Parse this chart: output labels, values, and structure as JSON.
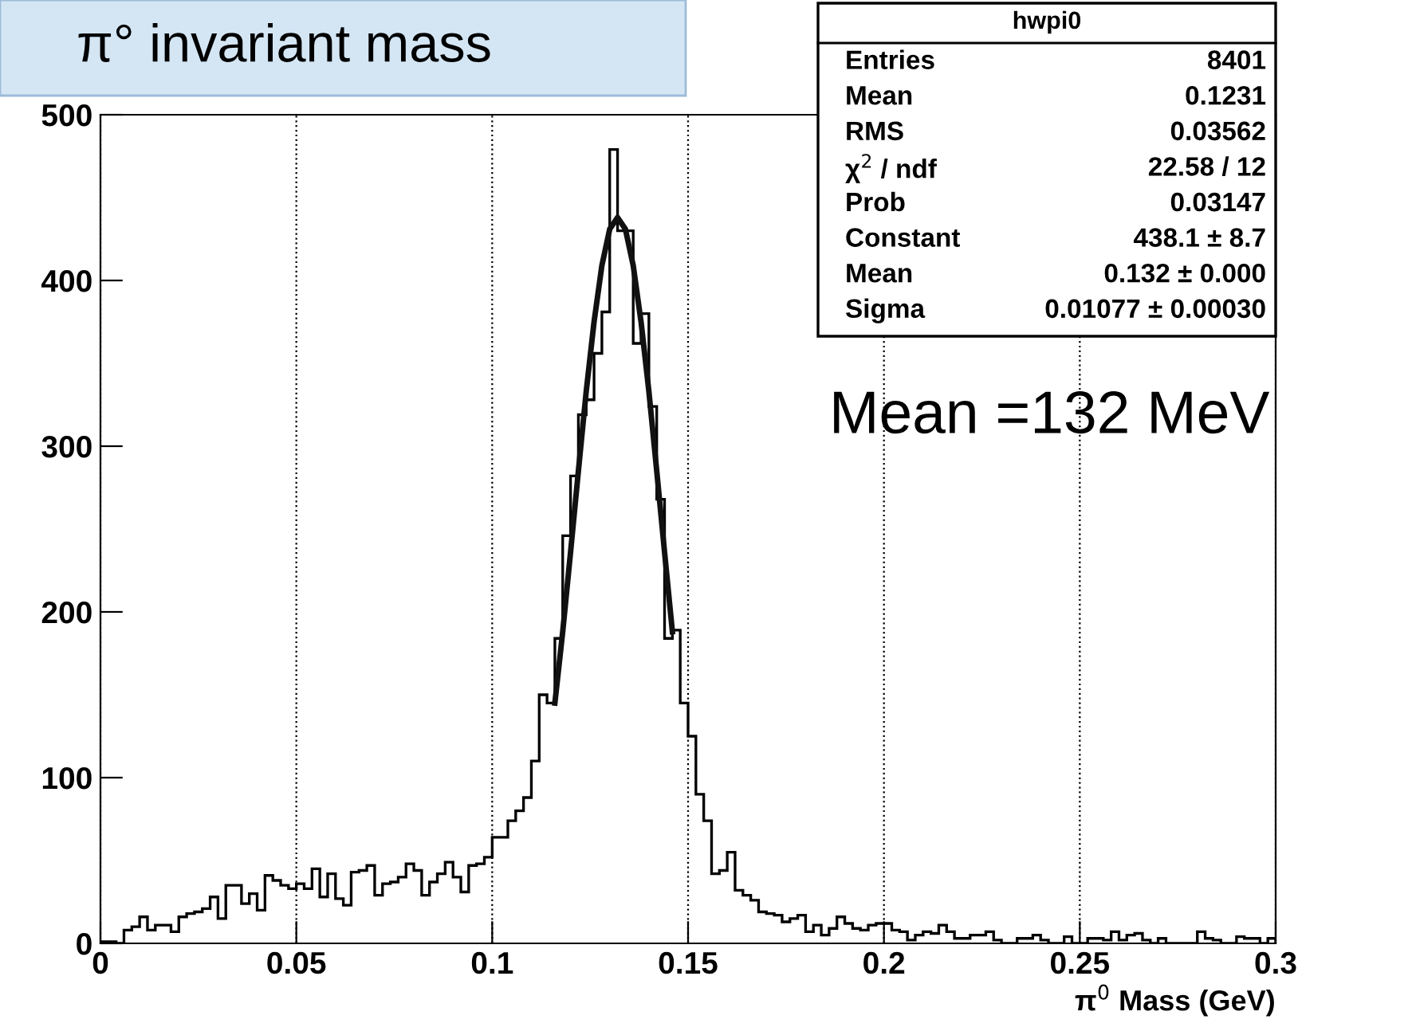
{
  "chart_data": {
    "type": "histogram",
    "title": "π° invariant mass",
    "xlabel": "π$^{0}$ Mass (GeV)",
    "xlim": [
      0,
      0.3
    ],
    "xticks": [
      0,
      0.05,
      0.1,
      0.15,
      0.2,
      0.25,
      0.3
    ],
    "ylim": [
      0,
      500
    ],
    "yticks": [
      0,
      100,
      200,
      300,
      400,
      500
    ],
    "grid": "x",
    "color": "#000000",
    "bins": [
      0,
      0.002,
      0.004,
      0.006,
      0.008,
      0.01,
      0.012,
      0.014,
      0.016,
      0.018,
      0.02,
      0.022,
      0.024,
      0.026,
      0.028,
      0.03,
      0.032,
      0.034,
      0.036,
      0.038,
      0.04,
      0.042,
      0.044,
      0.046,
      0.048,
      0.05,
      0.052,
      0.054,
      0.056,
      0.058,
      0.06,
      0.062,
      0.064,
      0.066,
      0.068,
      0.07,
      0.072,
      0.074,
      0.076,
      0.078,
      0.08,
      0.082,
      0.084,
      0.086,
      0.088,
      0.09,
      0.092,
      0.094,
      0.096,
      0.098,
      0.1,
      0.102,
      0.104,
      0.106,
      0.108,
      0.11,
      0.112,
      0.114,
      0.116,
      0.118,
      0.12,
      0.122,
      0.124,
      0.126,
      0.128,
      0.13,
      0.132,
      0.134,
      0.136,
      0.138,
      0.14,
      0.142,
      0.144,
      0.146,
      0.148,
      0.15,
      0.152,
      0.154,
      0.156,
      0.158,
      0.16,
      0.162,
      0.164,
      0.166,
      0.168,
      0.17,
      0.172,
      0.174,
      0.176,
      0.178,
      0.18,
      0.182,
      0.184,
      0.186,
      0.188,
      0.19,
      0.192,
      0.194,
      0.196,
      0.198,
      0.2,
      0.202,
      0.204,
      0.206,
      0.208,
      0.21,
      0.212,
      0.214,
      0.216,
      0.218,
      0.22,
      0.222,
      0.224,
      0.226,
      0.228,
      0.23,
      0.232,
      0.234,
      0.236,
      0.238,
      0.24,
      0.242,
      0.244,
      0.246,
      0.248,
      0.25,
      0.252,
      0.254,
      0.256,
      0.258,
      0.26,
      0.262,
      0.264,
      0.266,
      0.268,
      0.27,
      0.272,
      0.274,
      0.276,
      0.278,
      0.28,
      0.282,
      0.284,
      0.286,
      0.288,
      0.29,
      0.292,
      0.294,
      0.296,
      0.298,
      0.3
    ],
    "values": [
      1,
      1,
      0,
      8,
      10,
      16,
      8,
      11,
      11,
      7,
      16,
      18,
      19,
      21,
      28,
      15,
      35,
      35,
      24,
      30,
      20,
      41,
      38,
      35,
      33,
      36,
      33,
      45,
      28,
      42,
      27,
      23,
      43,
      44,
      47,
      29,
      36,
      37,
      40,
      48,
      44,
      29,
      37,
      42,
      49,
      40,
      31,
      47,
      48,
      52,
      64,
      64,
      74,
      80,
      88,
      110,
      150,
      145,
      184,
      246,
      282,
      319,
      328,
      356,
      381,
      479,
      430,
      430,
      362,
      380,
      324,
      268,
      184,
      189,
      145,
      125,
      90,
      74,
      42,
      44,
      55,
      32,
      29,
      26,
      19,
      18,
      17,
      13,
      15,
      17,
      7,
      11,
      5,
      9,
      16,
      12,
      9,
      8,
      11,
      12,
      12,
      8,
      7,
      2,
      5,
      7,
      6,
      11,
      7,
      3,
      3,
      5,
      5,
      7,
      2,
      0,
      0,
      3,
      3,
      5,
      2,
      0,
      0,
      4,
      0,
      0,
      3,
      3,
      2,
      7,
      2,
      5,
      6,
      2,
      0,
      3,
      0,
      0,
      0,
      0,
      7,
      3,
      2,
      0,
      0,
      4,
      3,
      3,
      0,
      3
    ],
    "series": [
      {
        "type": "line",
        "color": "#111111",
        "x": [
          0.116,
          0.118,
          0.12,
          0.122,
          0.124,
          0.126,
          0.128,
          0.13,
          0.132,
          0.134,
          0.136,
          0.138,
          0.14,
          0.142,
          0.144,
          0.146
        ],
        "values": [
          145,
          188,
          236,
          285,
          333,
          375,
          409,
          431,
          438,
          431,
          409,
          375,
          333,
          285,
          236,
          188
        ]
      }
    ],
    "annotations": [
      "hwpi0",
      "Entries",
      "8401",
      "Mean",
      "0.1231",
      "RMS",
      "0.03562",
      "χ$^{2}$ / ndf",
      "22.58 / 12",
      "Prob",
      "0.03147",
      "Constant",
      "438.1 ± 8.7",
      "Mean",
      "0.132 ± 0.000",
      "Sigma",
      "0.01077 ± 0.00030",
      "Mean =132 MeV"
    ]
  }
}
